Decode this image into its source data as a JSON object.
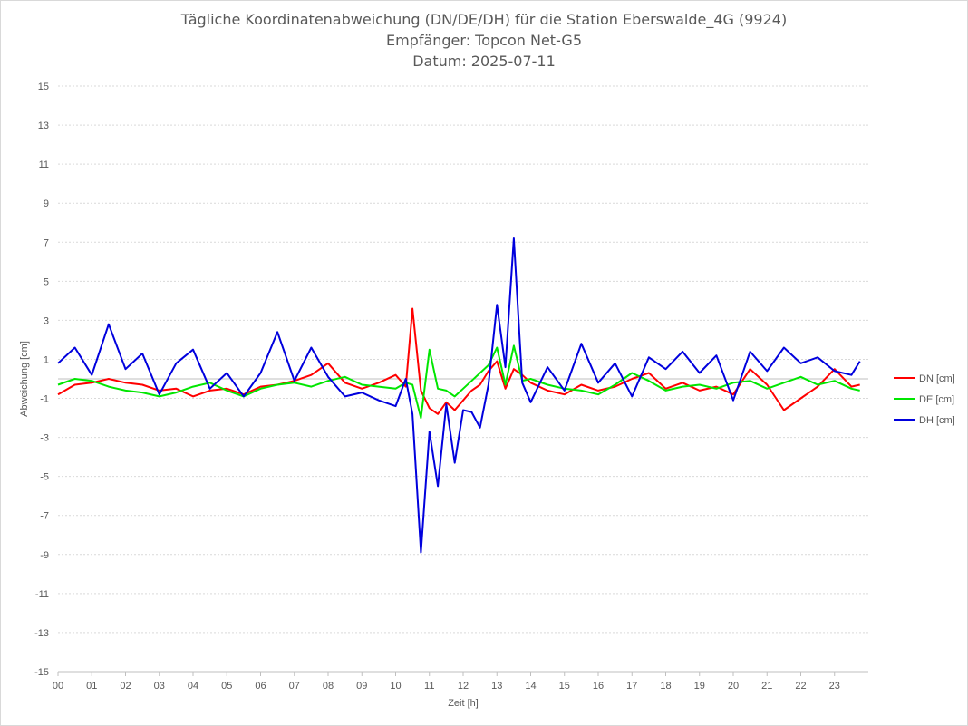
{
  "chart_data": {
    "type": "line",
    "title_lines": [
      "Tägliche Koordinatenabweichung (DN/DE/DH) für die Station Eberswalde_4G (9924)",
      "Empfänger: Topcon Net-G5",
      "Datum: 2025-07-11"
    ],
    "xlabel": "Zeit [h]",
    "ylabel": "Abweichung [cm]",
    "xlim": [
      0,
      24
    ],
    "ylim": [
      -15,
      15
    ],
    "x_ticks": [
      "00",
      "01",
      "02",
      "03",
      "04",
      "05",
      "06",
      "07",
      "08",
      "09",
      "10",
      "11",
      "12",
      "13",
      "14",
      "15",
      "16",
      "17",
      "18",
      "19",
      "20",
      "21",
      "22",
      "23"
    ],
    "y_ticks": [
      15,
      13,
      11,
      9,
      7,
      5,
      3,
      1,
      -1,
      -3,
      -5,
      -7,
      -9,
      -11,
      -13,
      -15
    ],
    "grid": "horizontal dotted",
    "legend_position": "right",
    "x": [
      0.0,
      0.5,
      1.0,
      1.5,
      2.0,
      2.5,
      3.0,
      3.5,
      4.0,
      4.5,
      5.0,
      5.5,
      6.0,
      6.5,
      7.0,
      7.5,
      8.0,
      8.5,
      9.0,
      9.5,
      10.0,
      10.3,
      10.5,
      10.75,
      11.0,
      11.25,
      11.5,
      11.75,
      12.0,
      12.25,
      12.5,
      12.75,
      13.0,
      13.25,
      13.5,
      13.75,
      14.0,
      14.5,
      15.0,
      15.5,
      16.0,
      16.5,
      17.0,
      17.5,
      18.0,
      18.5,
      19.0,
      19.5,
      20.0,
      20.5,
      21.0,
      21.5,
      22.0,
      22.5,
      23.0,
      23.5,
      23.75
    ],
    "series": [
      {
        "name": "DN [cm]",
        "color": "#ff0000",
        "values": [
          -0.8,
          -0.3,
          -0.2,
          0.0,
          -0.2,
          -0.3,
          -0.6,
          -0.5,
          -0.9,
          -0.6,
          -0.5,
          -0.8,
          -0.4,
          -0.3,
          -0.1,
          0.2,
          0.8,
          -0.2,
          -0.5,
          -0.2,
          0.2,
          -0.4,
          3.6,
          -0.6,
          -1.5,
          -1.8,
          -1.2,
          -1.6,
          -1.1,
          -0.6,
          -0.3,
          0.4,
          0.9,
          -0.5,
          0.5,
          0.2,
          -0.2,
          -0.6,
          -0.8,
          -0.3,
          -0.6,
          -0.4,
          0.0,
          0.3,
          -0.5,
          -0.2,
          -0.6,
          -0.4,
          -0.8,
          0.5,
          -0.3,
          -1.6,
          -1.0,
          -0.4,
          0.5,
          -0.4,
          -0.3
        ]
      },
      {
        "name": "DE [cm]",
        "color": "#00e600",
        "values": [
          -0.3,
          0.0,
          -0.1,
          -0.4,
          -0.6,
          -0.7,
          -0.9,
          -0.7,
          -0.4,
          -0.2,
          -0.6,
          -0.9,
          -0.5,
          -0.3,
          -0.2,
          -0.4,
          -0.1,
          0.1,
          -0.3,
          -0.4,
          -0.5,
          -0.2,
          -0.3,
          -2.0,
          1.5,
          -0.5,
          -0.6,
          -0.9,
          -0.5,
          -0.1,
          0.3,
          0.7,
          1.6,
          -0.3,
          1.7,
          -0.1,
          0.0,
          -0.3,
          -0.5,
          -0.6,
          -0.8,
          -0.3,
          0.3,
          -0.1,
          -0.6,
          -0.4,
          -0.3,
          -0.5,
          -0.2,
          -0.1,
          -0.5,
          -0.2,
          0.1,
          -0.3,
          -0.1,
          -0.5,
          -0.6
        ]
      },
      {
        "name": "DH [cm]",
        "color": "#0000dd",
        "values": [
          0.8,
          1.6,
          0.2,
          2.8,
          0.5,
          1.3,
          -0.8,
          0.8,
          1.5,
          -0.5,
          0.3,
          -0.9,
          0.3,
          2.4,
          -0.1,
          1.6,
          0.1,
          -0.9,
          -0.7,
          -1.1,
          -1.4,
          0.0,
          -1.8,
          -8.9,
          -2.7,
          -5.5,
          -1.3,
          -4.3,
          -1.6,
          -1.7,
          -2.5,
          -0.3,
          3.8,
          0.6,
          7.2,
          -0.2,
          -1.2,
          0.6,
          -0.6,
          1.8,
          -0.2,
          0.8,
          -0.9,
          1.1,
          0.5,
          1.4,
          0.3,
          1.2,
          -1.1,
          1.4,
          0.4,
          1.6,
          0.8,
          1.1,
          0.4,
          0.2,
          0.9
        ]
      }
    ]
  }
}
